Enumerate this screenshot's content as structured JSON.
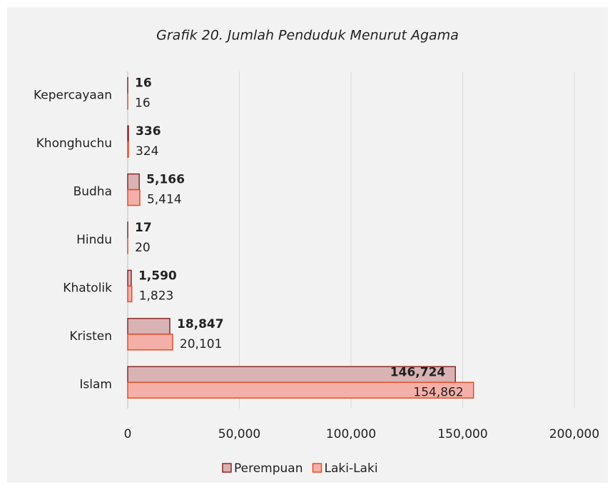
{
  "chart_data": {
    "type": "bar",
    "orientation": "horizontal",
    "title": "Grafik 20. Jumlah Penduduk Menurut Agama",
    "categories": [
      "Kepercayaan",
      "Khonghuchu",
      "Budha",
      "Hindu",
      "Khatolik",
      "Kristen",
      "Islam"
    ],
    "series": [
      {
        "name": "Perempuan",
        "color": "#d9b3b3",
        "edge": "#8b2a2a",
        "values": [
          16,
          336,
          5166,
          17,
          1590,
          18847,
          146724
        ],
        "value_labels": [
          "16",
          "336",
          "5,166",
          "17",
          "1,590",
          "18,847",
          "146,724"
        ]
      },
      {
        "name": "Laki-Laki",
        "color": "#f4b0a8",
        "edge": "#e0502a",
        "values": [
          16,
          324,
          5414,
          20,
          1823,
          20101,
          154862
        ],
        "value_labels": [
          "16",
          "324",
          "5,414",
          "20",
          "1,823",
          "20,101",
          "154,862"
        ]
      }
    ],
    "xlim": [
      0,
      200000
    ],
    "xticks": [
      0,
      {
        "value": 50000,
        "label": "50,000"
      },
      {
        "value": 100000,
        "label": "100,000"
      },
      {
        "value": 150000,
        "label": "150,000"
      },
      {
        "value": 200000,
        "label": "200,000"
      }
    ],
    "grid": true,
    "legend": "bottom"
  }
}
